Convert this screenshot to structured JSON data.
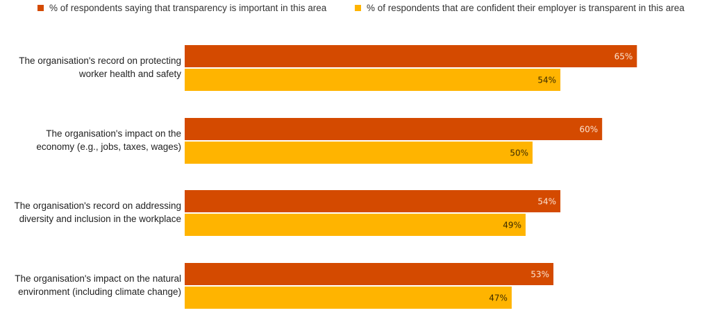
{
  "chart_data": {
    "type": "bar",
    "orientation": "horizontal",
    "categories": [
      [
        "The organisation's record on protecting",
        "worker health and safety"
      ],
      [
        "The organisation's impact on the",
        "economy (e.g., jobs, taxes, wages)"
      ],
      [
        "The organisation's record on addressing",
        "diversity and inclusion in the workplace"
      ],
      [
        "The organisation's impact on the natural",
        "environment (including climate change)"
      ]
    ],
    "series": [
      {
        "name": "% of respondents saying that transparency is important in this area",
        "color": "#d44a00",
        "label_color": "#fbe3d0",
        "values": [
          65,
          60,
          54,
          53
        ],
        "labels": [
          "65%",
          "60%",
          "54%",
          "53%"
        ]
      },
      {
        "name": "% of respondents that are confident their employer is transparent in this area",
        "color": "#ffb400",
        "label_color": "#3a2a00",
        "values": [
          54,
          50,
          49,
          47
        ],
        "labels": [
          "54%",
          "50%",
          "49%",
          "47%"
        ]
      }
    ],
    "xlim": [
      0,
      75
    ],
    "legend_position": "top",
    "grid": false,
    "title": "",
    "xlabel": "",
    "ylabel": ""
  }
}
